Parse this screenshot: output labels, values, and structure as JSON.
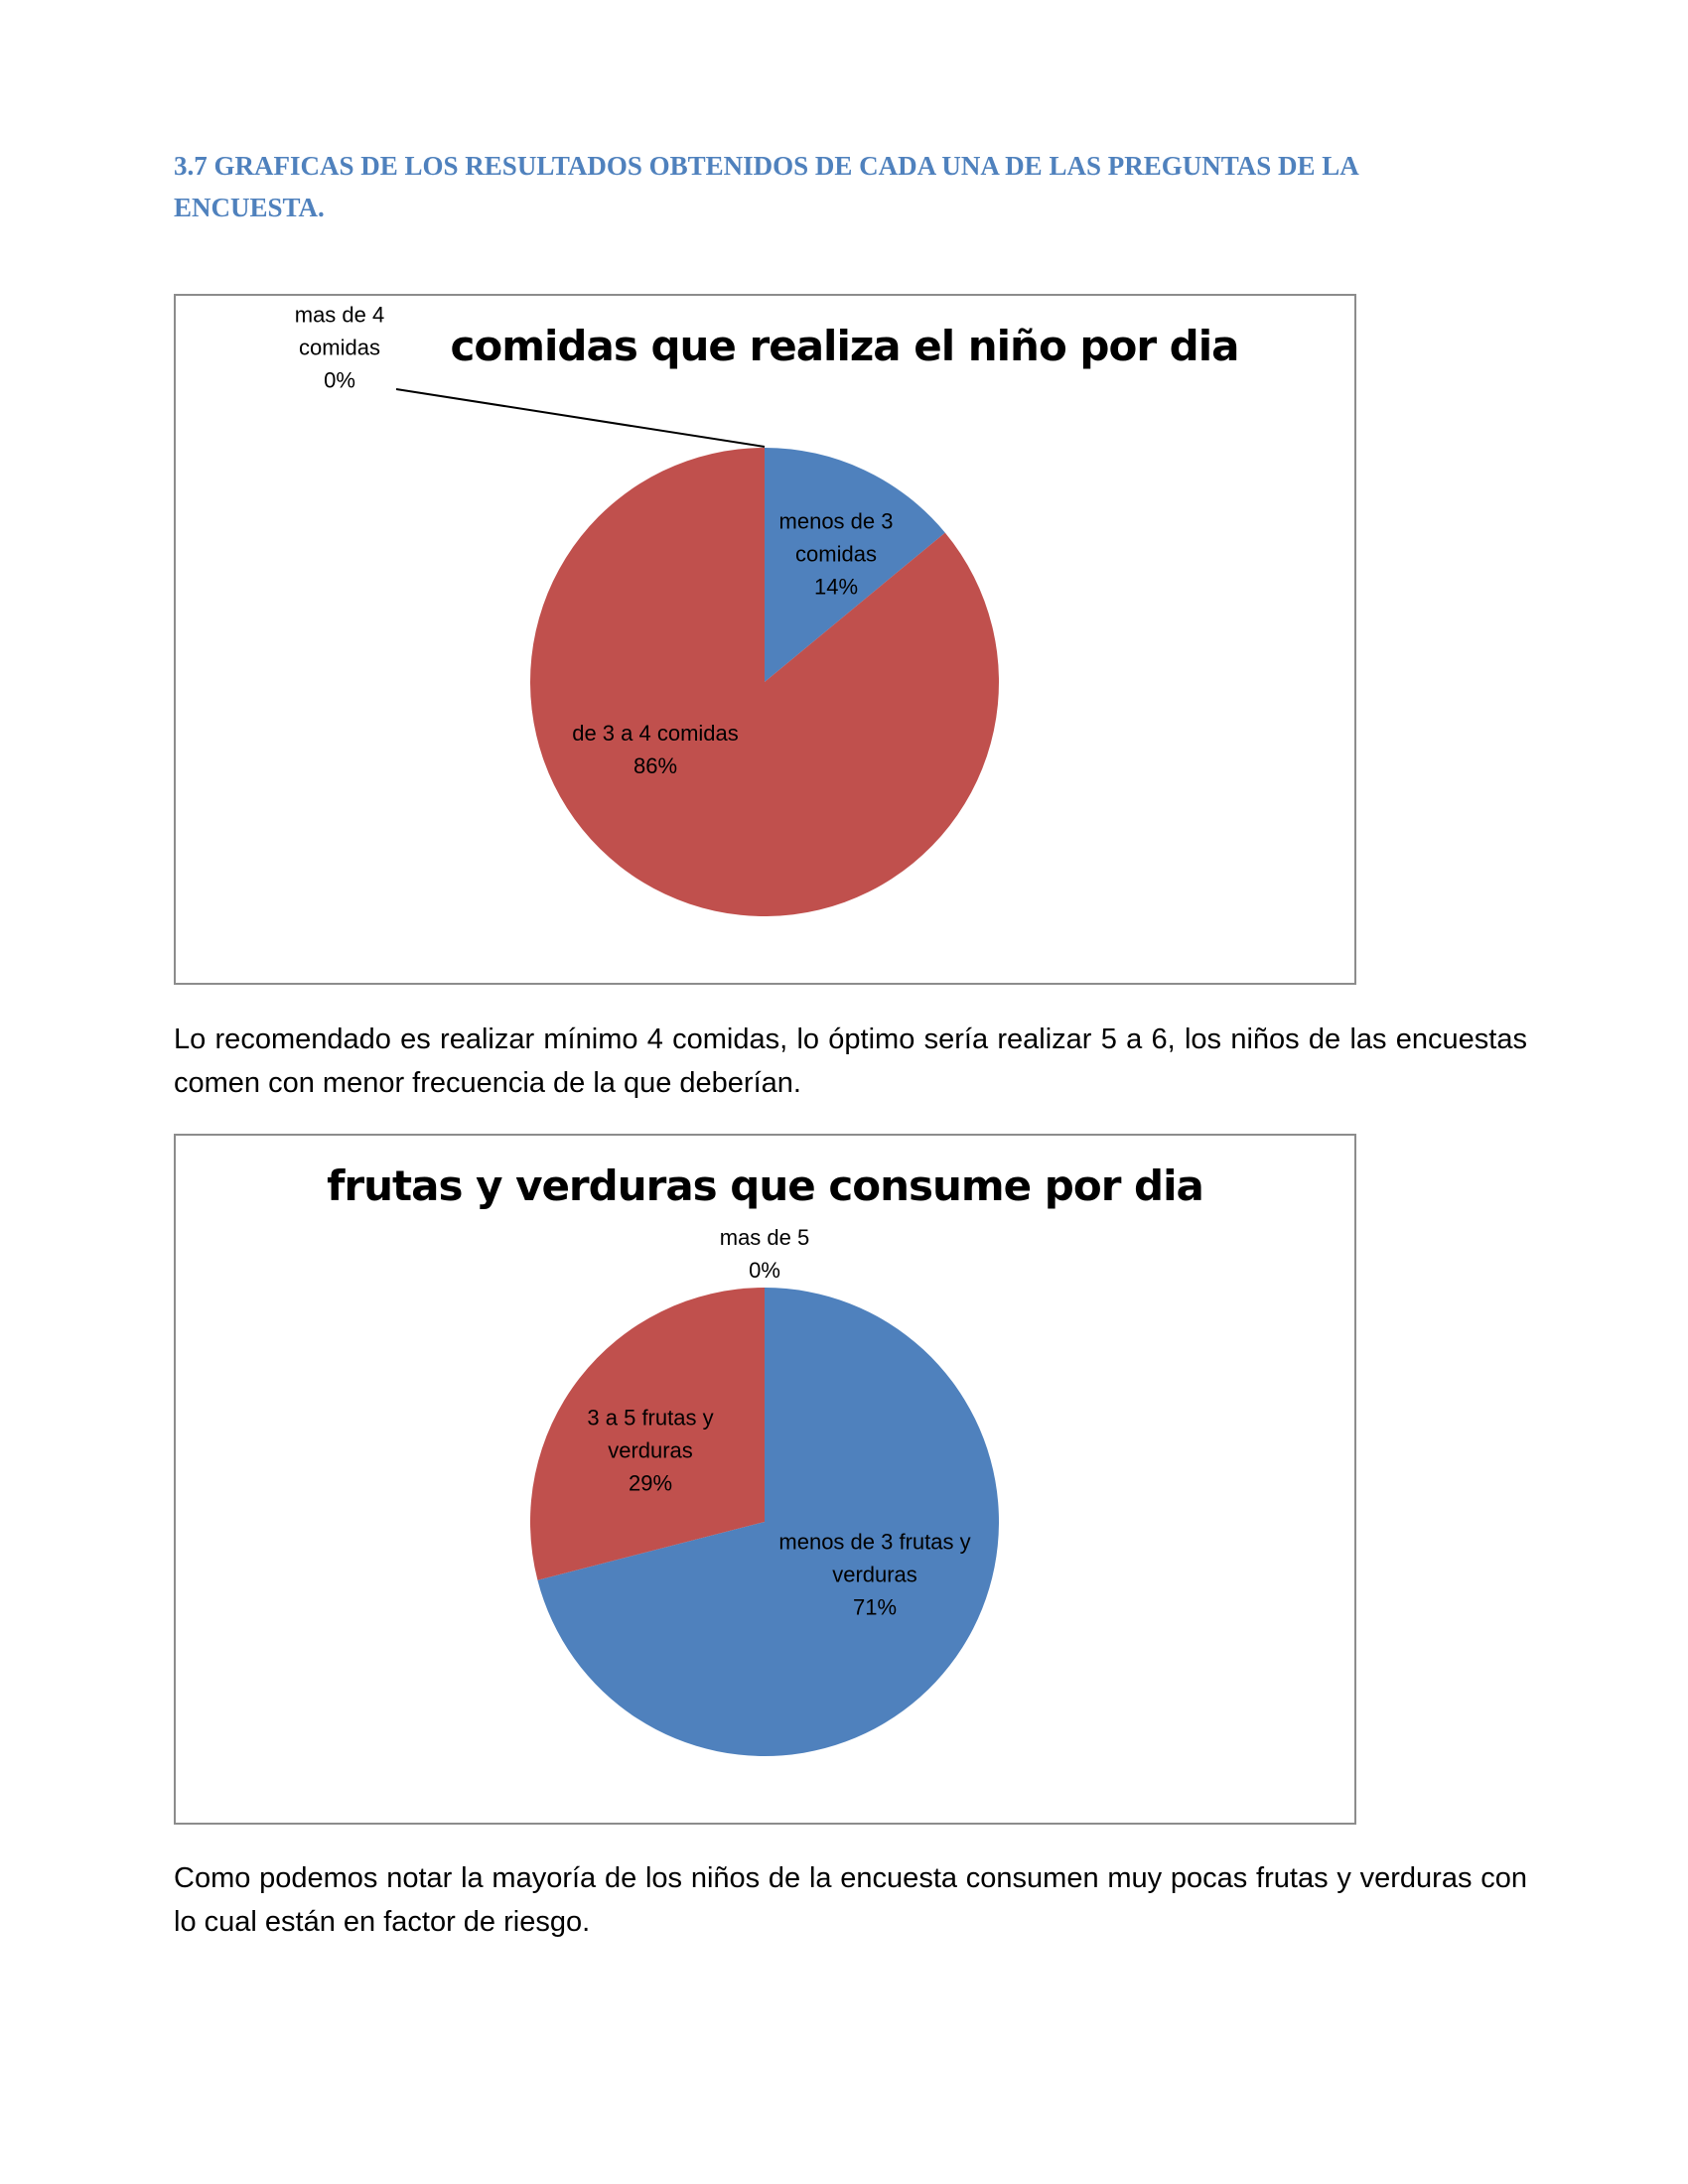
{
  "heading": "3.7 GRAFICAS DE LOS RESULTADOS OBTENIDOS DE CADA UNA DE LAS PREGUNTAS DE LA ENCUESTA.",
  "chart_data": [
    {
      "type": "pie",
      "title": "comidas que realiza el niño por dia",
      "categories": [
        "menos de 3 comidas",
        "de 3 a 4 comidas",
        "mas de 4 comidas"
      ],
      "values": [
        14,
        86,
        0
      ],
      "value_labels": [
        "14%",
        "86%",
        "0%"
      ],
      "colors": [
        "#4f81bd",
        "#c0504d",
        "#9bbb59"
      ]
    },
    {
      "type": "pie",
      "title": "frutas y verduras que consume por dia",
      "categories": [
        "menos de 3 frutas y verduras",
        "3 a 5 frutas y verduras",
        "mas de 5"
      ],
      "values": [
        71,
        29,
        0
      ],
      "value_labels": [
        "71%",
        "29%",
        "0%"
      ],
      "colors": [
        "#4f81bd",
        "#c0504d",
        "#9bbb59"
      ]
    }
  ],
  "paragraphs": [
    "Lo recomendado es realizar mínimo 4 comidas, lo óptimo sería realizar 5 a 6, los niños de las encuestas comen con menor frecuencia de la que deberían.",
    "Como podemos notar la mayoría de los niños de la encuesta consumen muy pocas frutas y verduras con lo cual están en factor de riesgo."
  ]
}
